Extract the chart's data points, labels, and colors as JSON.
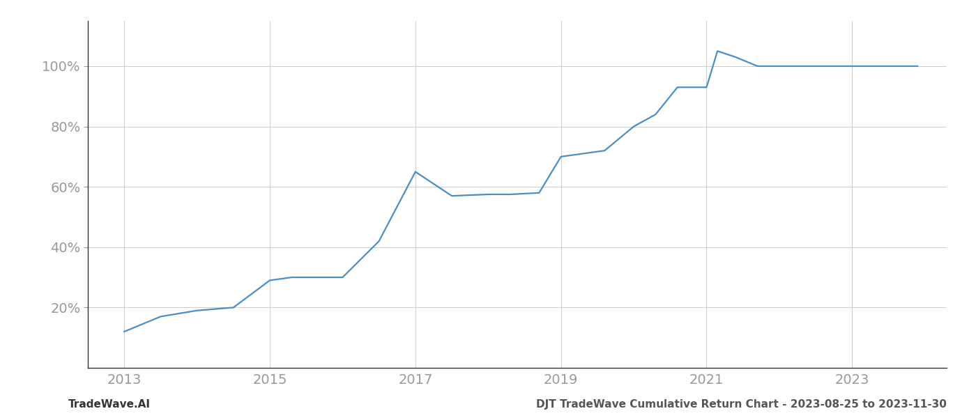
{
  "x_years": [
    2013.0,
    2013.5,
    2014.0,
    2014.5,
    2015.0,
    2015.3,
    2015.7,
    2016.0,
    2016.5,
    2017.0,
    2017.5,
    2018.0,
    2018.3,
    2018.7,
    2019.0,
    2019.3,
    2019.6,
    2020.0,
    2020.3,
    2020.6,
    2021.0,
    2021.15,
    2021.4,
    2021.7,
    2022.0,
    2022.5,
    2023.0,
    2023.9
  ],
  "y_values": [
    12,
    17,
    19,
    20,
    29,
    30,
    30,
    30,
    42,
    65,
    57,
    57.5,
    57.5,
    58,
    70,
    71,
    72,
    80,
    84,
    93,
    93,
    105,
    103,
    100,
    100,
    100,
    100,
    100
  ],
  "line_color": "#4a8fc4",
  "line_width": 1.6,
  "grid_color": "#cccccc",
  "background_color": "#ffffff",
  "ytick_labels": [
    "20%",
    "40%",
    "60%",
    "80%",
    "100%"
  ],
  "ytick_values": [
    20,
    40,
    60,
    80,
    100
  ],
  "xtick_values": [
    2013,
    2015,
    2017,
    2019,
    2021,
    2023
  ],
  "xlim": [
    2012.5,
    2024.3
  ],
  "ylim": [
    0,
    115
  ],
  "footer_left": "TradeWave.AI",
  "footer_right": "DJT TradeWave Cumulative Return Chart - 2023-08-25 to 2023-11-30",
  "tick_color": "#999999",
  "left_spine_color": "#333333",
  "bottom_spine_color": "#333333",
  "footer_color_left": "#333333",
  "footer_color_right": "#555555",
  "footer_fontsize": 11,
  "tick_fontsize": 14
}
